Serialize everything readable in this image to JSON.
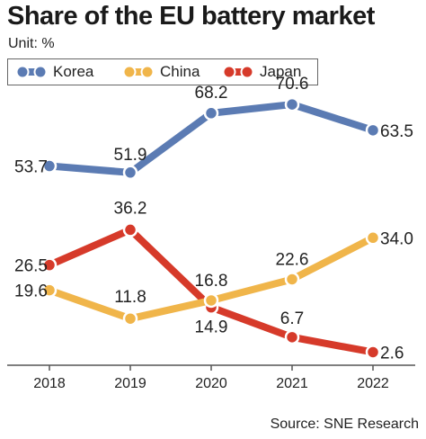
{
  "title": "Share of the EU battery market",
  "unit": "Unit: %",
  "source": "Source: SNE Research",
  "chart_data": {
    "type": "line",
    "title": "Share of the EU battery market",
    "ylabel": "Unit: %",
    "xlabel": "",
    "categories": [
      "2018",
      "2019",
      "2020",
      "2021",
      "2022"
    ],
    "series": [
      {
        "name": "Korea",
        "color": "#5b7bb3",
        "values": [
          53.7,
          51.9,
          68.2,
          70.6,
          63.5
        ],
        "labels": [
          "53.7",
          "51.9",
          "68.2",
          "70.6",
          "63.5"
        ]
      },
      {
        "name": "China",
        "color": "#f0b54a",
        "values": [
          19.6,
          11.8,
          16.8,
          22.6,
          34.0
        ],
        "labels": [
          "19.6",
          "11.8",
          "16.8",
          "22.6",
          "34.0"
        ]
      },
      {
        "name": "Japan",
        "color": "#d63a2a",
        "values": [
          26.5,
          36.2,
          14.9,
          6.7,
          2.6
        ],
        "labels": [
          "26.5",
          "36.2",
          "14.9",
          "6.7",
          "2.6"
        ]
      }
    ],
    "grid": false,
    "legend": "top-left"
  }
}
